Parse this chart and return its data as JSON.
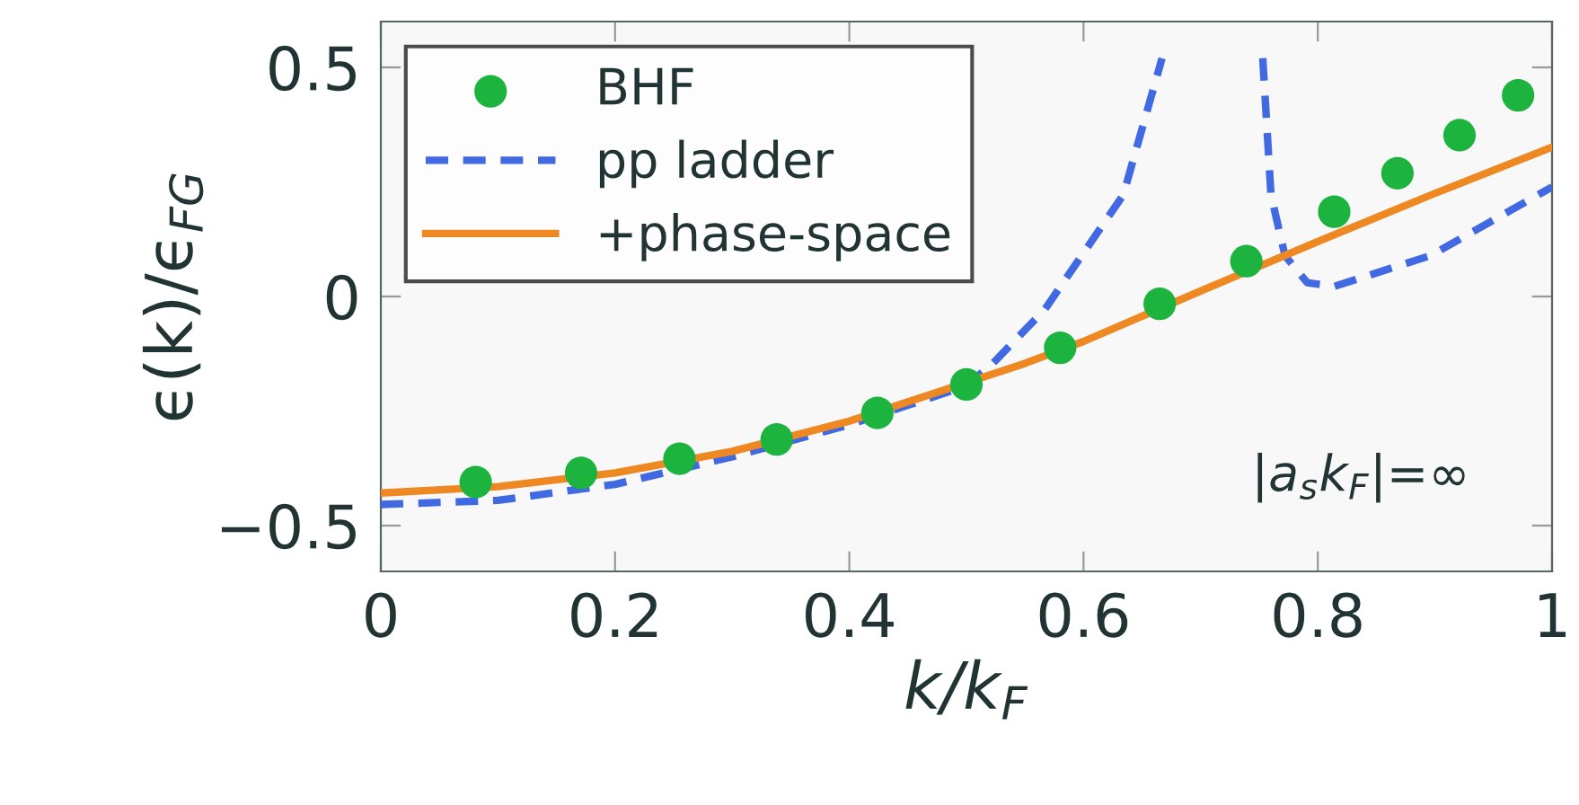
{
  "chart_data": {
    "type": "line",
    "xlabel": "k/k$_{F}$",
    "ylabel": "ϵ(k)/ϵ$_{FG}$",
    "annotations": [
      "|a$_{s}$k$_{F}$|=∞"
    ],
    "xlim": [
      0,
      1
    ],
    "ylim": [
      -0.6,
      0.6
    ],
    "xticks": [
      0,
      0.2,
      0.4,
      0.6,
      0.8,
      1
    ],
    "yticks": [
      {
        "value": -0.5,
        "label": "−0.5"
      },
      0,
      0.5
    ],
    "grid": false,
    "legend": "top left",
    "series": [
      {
        "name": "BHF",
        "type": "scatter",
        "marker": "circle",
        "color": "#1db33f",
        "x": [
          0.081,
          0.171,
          0.255,
          0.338,
          0.424,
          0.5,
          0.58,
          0.665,
          0.739,
          0.814,
          0.868,
          0.921,
          0.971
        ],
        "values": [
          -0.405,
          -0.385,
          -0.354,
          -0.312,
          -0.254,
          -0.192,
          -0.112,
          -0.016,
          0.077,
          0.185,
          0.269,
          0.352,
          0.439
        ]
      },
      {
        "name": "pp ladder",
        "line_style": "dashed",
        "color": "#4169e1",
        "x": [
          0,
          0.1,
          0.2,
          0.3,
          0.4,
          0.5,
          0.523,
          0.567,
          0.634,
          0.667,
          0.7,
          0.753,
          0.76,
          0.772,
          0.791,
          0.814,
          0.896,
          1.0
        ],
        "values": [
          -0.454,
          -0.445,
          -0.41,
          -0.35,
          -0.28,
          -0.195,
          -0.145,
          -0.028,
          0.222,
          0.52,
          null,
          0.52,
          0.222,
          0.089,
          0.03,
          0.022,
          0.089,
          0.239
        ]
      },
      {
        "name": "+phase-space",
        "line_style": "solid",
        "color": "#ee8822",
        "x": [
          0,
          0.1,
          0.2,
          0.3,
          0.4,
          0.55,
          0.6,
          0.7,
          0.75,
          0.8,
          0.9,
          1.0
        ],
        "values": [
          -0.429,
          -0.415,
          -0.385,
          -0.338,
          -0.272,
          -0.146,
          -0.098,
          0.012,
          0.066,
          0.12,
          0.225,
          0.326
        ]
      }
    ]
  }
}
